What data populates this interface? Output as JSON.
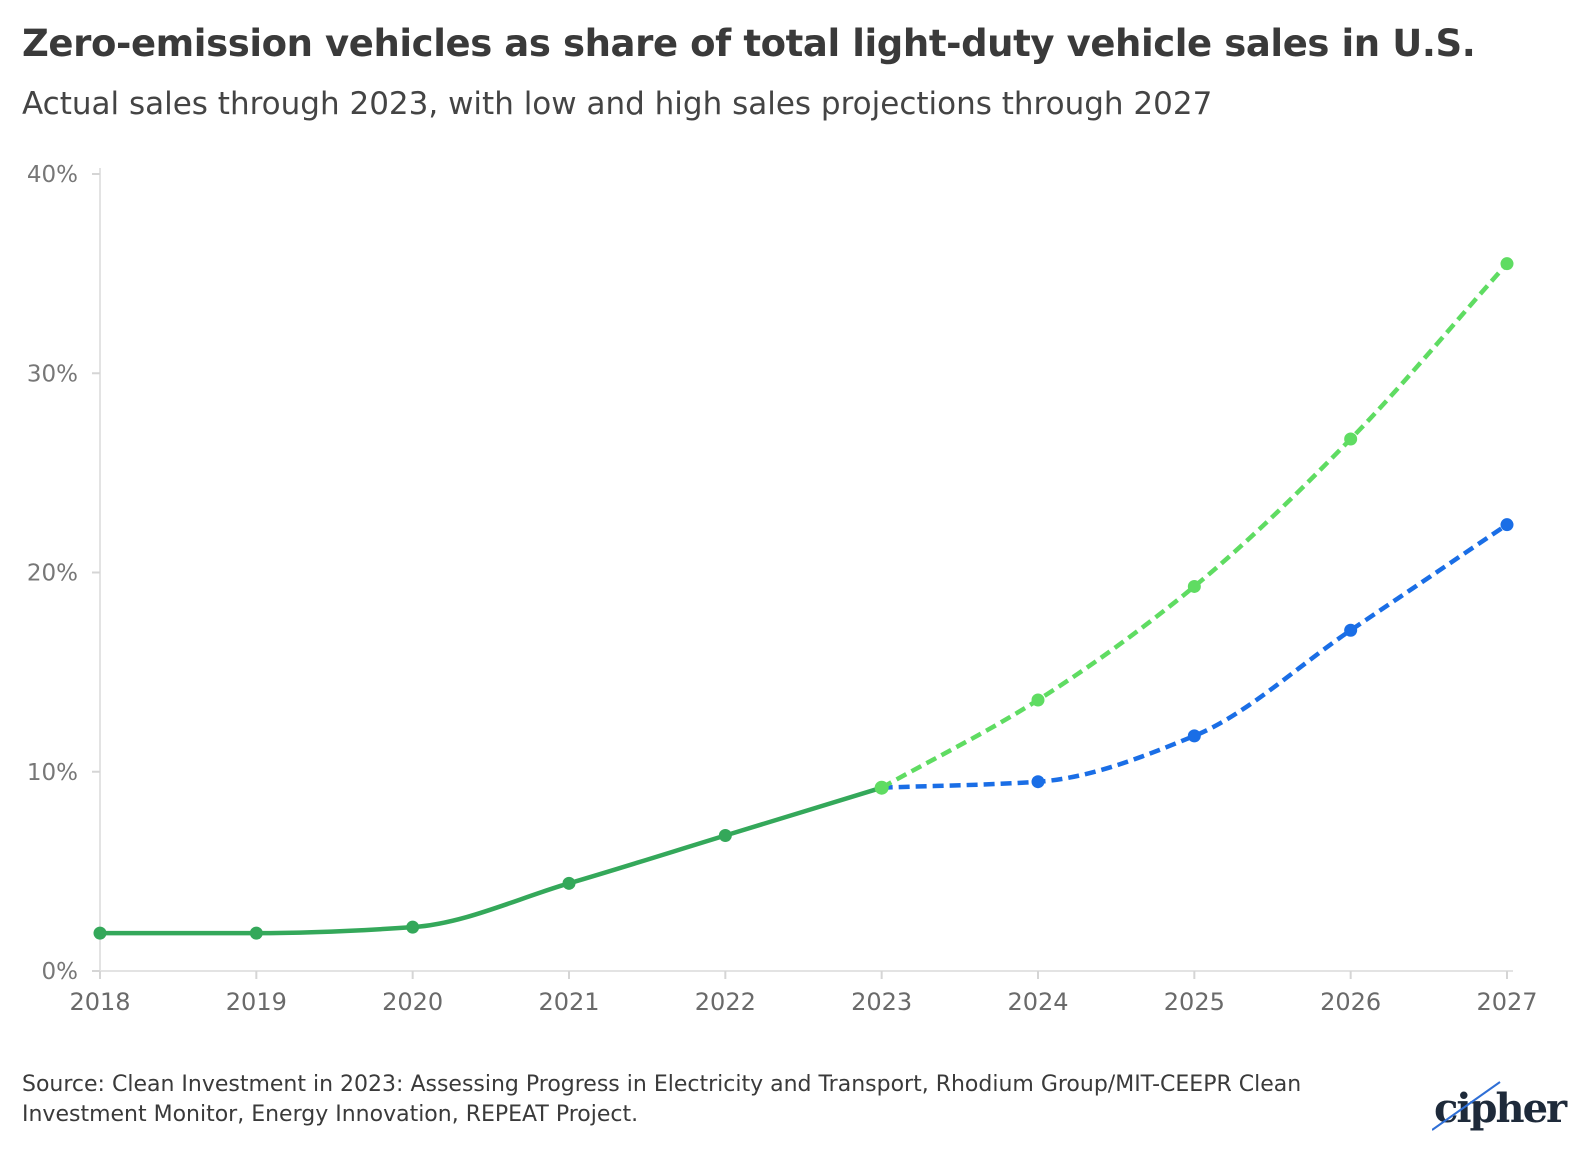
{
  "header": {
    "title": "Zero-emission vehicles as share of total light-duty vehicle sales in U.S.",
    "subtitle": "Actual sales through 2023, with low and high sales projections through 2027"
  },
  "chart_data": {
    "type": "line",
    "x": [
      2018,
      2019,
      2020,
      2021,
      2022,
      2023,
      2024,
      2025,
      2026,
      2027
    ],
    "x_tick_labels": [
      "2018",
      "2019",
      "2020",
      "2021",
      "2022",
      "2023",
      "2024",
      "2025",
      "2026",
      "2027"
    ],
    "y_ticks": [
      0,
      10,
      20,
      30,
      40
    ],
    "y_tick_labels": [
      "0%",
      "10%",
      "20%",
      "30%",
      "40%"
    ],
    "ylim": [
      0,
      40
    ],
    "ylabel": "",
    "xlabel": "",
    "grid": false,
    "series": [
      {
        "x": [
          2018,
          2019,
          2020,
          2021,
          2022,
          2023
        ],
        "values": [
          1.9,
          1.9,
          2.2,
          4.4,
          6.8,
          9.2
        ],
        "color": "#34a85a",
        "style": "solid"
      },
      {
        "x": [
          2023,
          2024,
          2025,
          2026,
          2027
        ],
        "values": [
          9.2,
          13.6,
          19.3,
          26.7,
          35.5
        ],
        "color": "#5fdc62",
        "style": "dashed"
      },
      {
        "x": [
          2023,
          2024,
          2025,
          2026,
          2027
        ],
        "values": [
          9.2,
          9.5,
          11.8,
          17.1,
          22.4
        ],
        "color": "#1a6ee6",
        "style": "dashed"
      }
    ]
  },
  "footer": {
    "source": "Source: Clean Investment in 2023: Assessing Progress in Electricity and Transport, Rhodium Group/MIT-CEEPR Clean Investment Monitor, Energy Innovation, REPEAT Project.",
    "logo_text": "cipher"
  }
}
